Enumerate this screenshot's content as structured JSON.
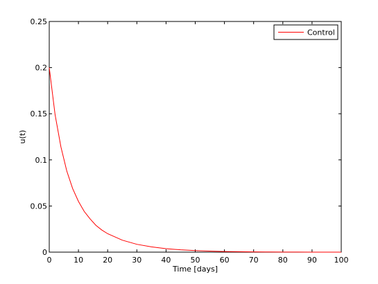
{
  "chart_data": {
    "type": "line",
    "title": "",
    "xlabel": "Time [days]",
    "ylabel": "u(t)",
    "xlim": [
      0,
      100
    ],
    "ylim": [
      0,
      0.25
    ],
    "xticks": [
      0,
      10,
      20,
      30,
      40,
      50,
      60,
      70,
      80,
      90,
      100
    ],
    "yticks": [
      0,
      0.05,
      0.1,
      0.15,
      0.2,
      0.25
    ],
    "xtick_labels": [
      "0",
      "10",
      "20",
      "30",
      "40",
      "50",
      "60",
      "70",
      "80",
      "90",
      "100"
    ],
    "ytick_labels": [
      "0",
      "0.05",
      "0.1",
      "0.15",
      "0.2",
      "0.25"
    ],
    "grid": false,
    "legend_position": "top-right",
    "series": [
      {
        "name": "Control",
        "color": "#ff0000",
        "x": [
          0,
          2,
          4,
          6,
          8,
          10,
          12,
          14,
          16,
          18,
          20,
          25,
          30,
          35,
          40,
          45,
          50,
          55,
          60,
          65,
          70,
          75,
          80,
          85,
          90,
          95,
          100
        ],
        "y": [
          0.2,
          0.149,
          0.114,
          0.088,
          0.069,
          0.055,
          0.044,
          0.036,
          0.029,
          0.024,
          0.02,
          0.013,
          0.0085,
          0.0057,
          0.0038,
          0.0025,
          0.0017,
          0.0011,
          0.0007,
          0.0005,
          0.0003,
          0.0002,
          0.0001,
          0.0001,
          0.0,
          0.0,
          0.0
        ]
      }
    ]
  }
}
